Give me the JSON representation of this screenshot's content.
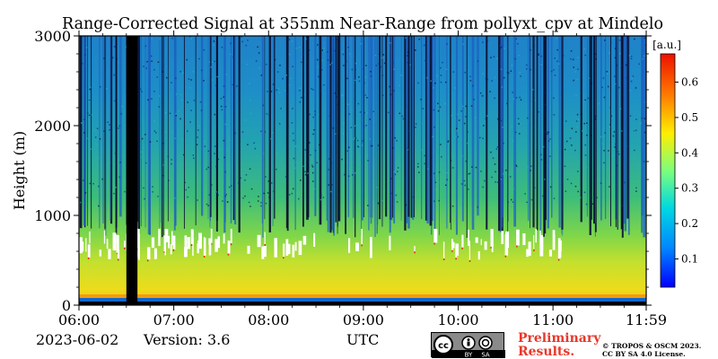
{
  "chart_data": {
    "type": "heatmap",
    "title": "Range-Corrected Signal at 355nm Near-Range from pollyxt_cpv at Mindelo",
    "xlabel": "UTC",
    "ylabel": "Height (m)",
    "x_ticks": [
      "06:00",
      "07:00",
      "08:00",
      "09:00",
      "10:00",
      "11:00",
      "11:59"
    ],
    "x_range": [
      "06:00",
      "11:59"
    ],
    "y_ticks": [
      0,
      1000,
      2000,
      3000
    ],
    "ylim": [
      0,
      3000
    ],
    "colorbar": {
      "label": "[a.u.]",
      "ticks": [
        0.1,
        0.2,
        0.3,
        0.4,
        0.5,
        0.6
      ],
      "range": [
        0.02,
        0.68
      ],
      "colormap": "jet"
    },
    "gaps_utc": [
      [
        "06:30",
        "06:37"
      ]
    ],
    "cloud_layer": {
      "base_m": 500,
      "top_m": 850,
      "start": "06:00",
      "end": "11:10",
      "color": "#ffffff"
    },
    "boundary_layer_m": 800,
    "colors": {
      "ground": "#f59a10",
      "bottom_strip": "#1166cc",
      "gap": "#000000"
    }
  },
  "footer": {
    "date": "2023-06-02",
    "version": "Version: 3.6",
    "xlabel": "UTC",
    "preliminary_line1": "Preliminary",
    "preliminary_line2": "Results.",
    "license_line1": "© TROPOS & OSCM 2023.",
    "license_line2": "CC BY SA 4.0 License.",
    "badge": {
      "by": "BY",
      "sa": "SA"
    }
  }
}
